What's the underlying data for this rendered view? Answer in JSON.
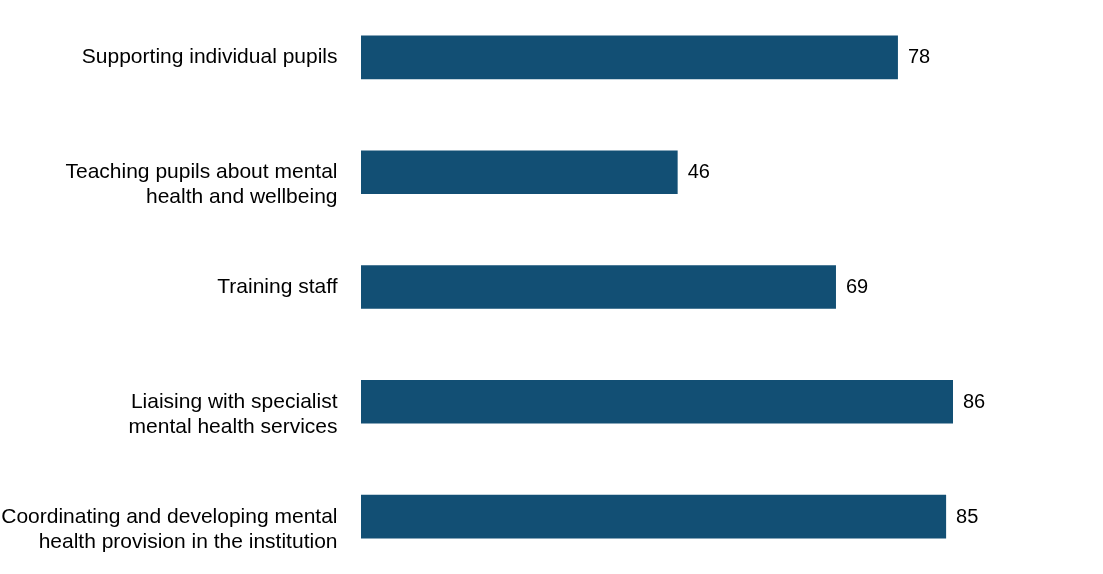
{
  "chart_data": {
    "type": "bar",
    "orientation": "horizontal",
    "categories": [
      "Supporting individual pupils",
      "Teaching pupils about mental\nhealth and wellbeing",
      "Training staff",
      "Liaising with specialist\nmental health services",
      "Coordinating and developing mental\nhealth provision in the institution"
    ],
    "values": [
      78,
      46,
      69,
      86,
      85
    ],
    "color": "#124f74",
    "data_labels": true
  }
}
